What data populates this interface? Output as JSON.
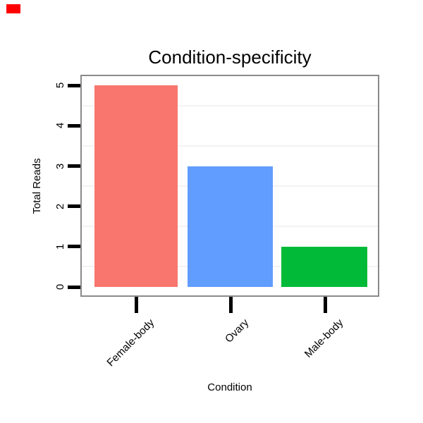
{
  "corner_marker": {
    "color": "#FF0000"
  },
  "chart_data": {
    "type": "bar",
    "title": "Condition-specificity",
    "xlabel": "Condition",
    "ylabel": "Total Reads",
    "categories": [
      "Female-body",
      "Ovary",
      "Male-body"
    ],
    "values": [
      5,
      3,
      1
    ],
    "bar_colors": [
      "#F8766D",
      "#619CFF",
      "#00BA38"
    ],
    "y_ticks": [
      "0",
      "1",
      "2",
      "3",
      "4",
      "5"
    ],
    "ylim": [
      0,
      5.5
    ],
    "grid": "faint horizontal minor gridlines at 0.5 intervals",
    "legend_position": "none",
    "panel_border_color": "#8A8A8A",
    "gridline_color": "#F3F3F3",
    "tick_color": "#000000",
    "text_color": "#000000",
    "background_color": "#FFFFFF"
  }
}
